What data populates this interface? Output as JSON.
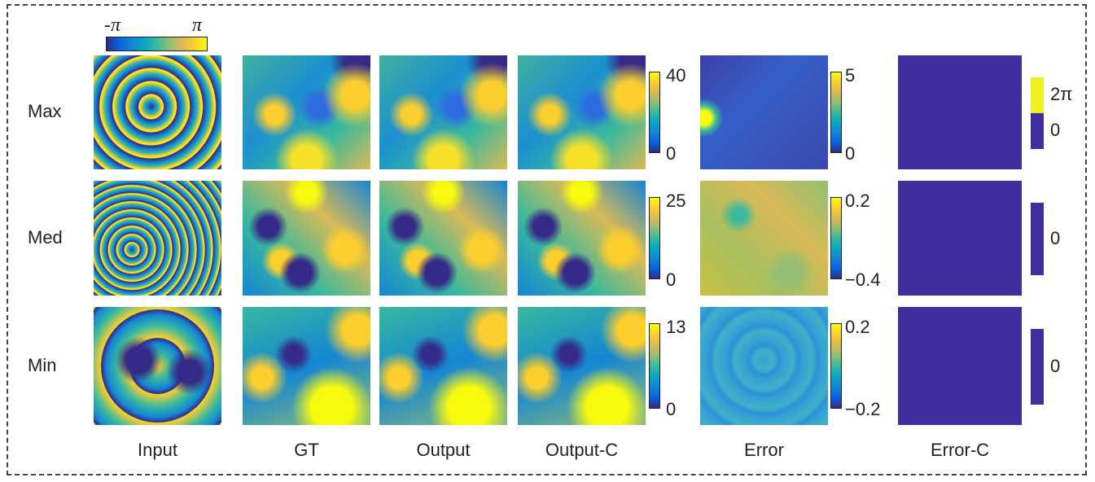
{
  "phase_colorbar": {
    "min_label": "-π",
    "max_label": "π"
  },
  "columns": [
    "Input",
    "GT",
    "Output",
    "Output-C",
    "Error",
    "Error-C"
  ],
  "rows": [
    {
      "label": "Max",
      "output_scale": [
        "40",
        "0"
      ],
      "error_scale": [
        "5",
        "0"
      ],
      "error_c_scale": [
        "2π",
        "0"
      ]
    },
    {
      "label": "Med",
      "output_scale": [
        "25",
        "0"
      ],
      "error_scale": [
        "0.2",
        "−0.4"
      ],
      "error_c_scale": [
        "0"
      ]
    },
    {
      "label": "Min",
      "output_scale": [
        "13",
        "0"
      ],
      "error_scale": [
        "0.2",
        "−0.2"
      ],
      "error_c_scale": [
        "0"
      ]
    }
  ]
}
